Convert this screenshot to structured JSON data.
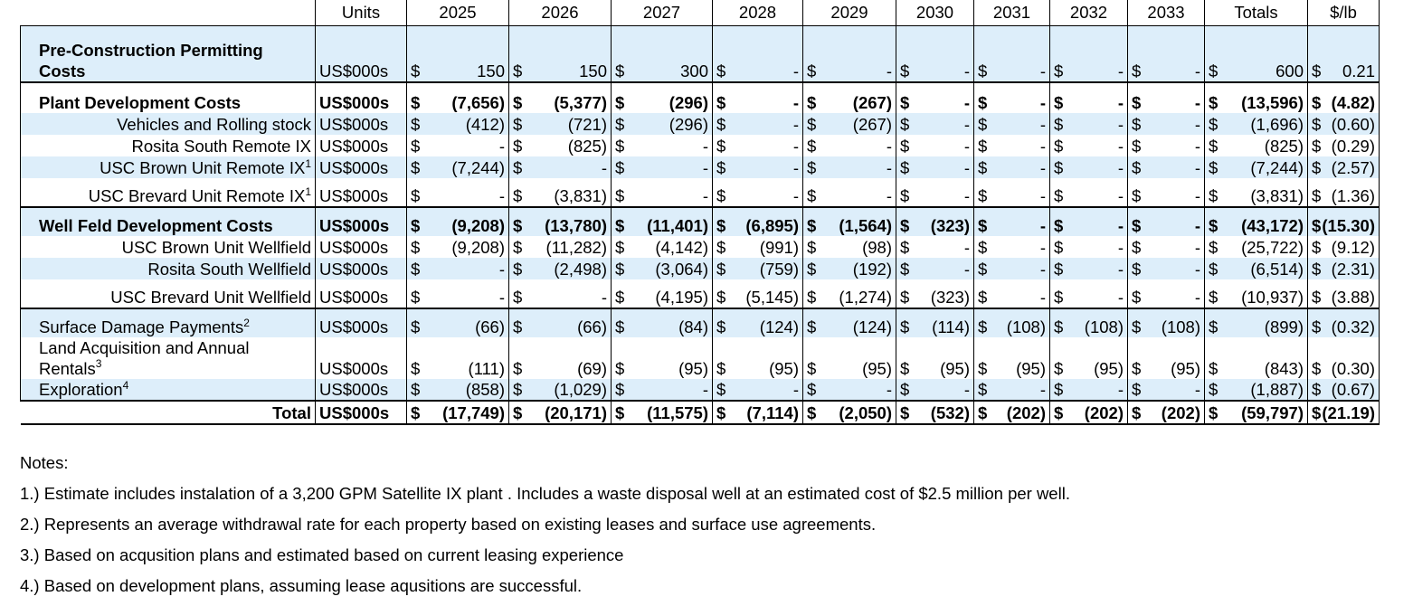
{
  "table": {
    "headers": [
      "Units",
      "2025",
      "2026",
      "2027",
      "2028",
      "2029",
      "2030",
      "2031",
      "2032",
      "2033",
      "Totals",
      "$/lb"
    ],
    "rows": [
      {
        "label": "Pre-Construction Permitting Costs",
        "units": "US$000s",
        "values": [
          "150",
          "150",
          "300",
          "-",
          "-",
          "-",
          "-",
          "-",
          "-",
          "600",
          "0.21"
        ],
        "style": "blue-wrap"
      },
      {
        "label": "Plant Development Costs",
        "units": "US$000s",
        "values": [
          "(7,656)",
          "(5,377)",
          "(296)",
          "-",
          "(267)",
          "-",
          "-",
          "-",
          "-",
          "(13,596)",
          "(4.82)"
        ],
        "style": "bold"
      },
      {
        "label": "Vehicles and Rolling stock",
        "units": "US$000s",
        "values": [
          "(412)",
          "(721)",
          "(296)",
          "-",
          "(267)",
          "-",
          "-",
          "-",
          "-",
          "(1,696)",
          "(0.60)"
        ],
        "style": "blue-indent"
      },
      {
        "label": "Rosita South Remote IX",
        "units": "US$000s",
        "values": [
          "-",
          "(825)",
          "-",
          "-",
          "-",
          "-",
          "-",
          "-",
          "-",
          "(825)",
          "(0.29)"
        ],
        "style": "indent"
      },
      {
        "label": "USC Brown Unit Remote IX",
        "sup": "1",
        "units": "US$000s",
        "values": [
          "(7,244)",
          "-",
          "-",
          "-",
          "-",
          "-",
          "-",
          "-",
          "-",
          "(7,244)",
          "(2.57)"
        ],
        "style": "blue-indent"
      },
      {
        "label": "USC Brevard Unit Remote IX",
        "sup": "1",
        "units": "US$000s",
        "values": [
          "-",
          "(3,831)",
          "-",
          "-",
          "-",
          "-",
          "-",
          "-",
          "-",
          "(3,831)",
          "(1.36)"
        ],
        "style": "indent-tall"
      },
      {
        "label": "Well Feld Development Costs",
        "units": "US$000s",
        "values": [
          "(9,208)",
          "(13,780)",
          "(11,401)",
          "(6,895)",
          "(1,564)",
          "(323)",
          "-",
          "-",
          "-",
          "(43,172)",
          "(15.30)"
        ],
        "style": "blue-section"
      },
      {
        "label": "USC Brown Unit Wellfield",
        "units": "US$000s",
        "values": [
          "(9,208)",
          "(11,282)",
          "(4,142)",
          "(991)",
          "(98)",
          "-",
          "-",
          "-",
          "-",
          "(25,722)",
          "(9.12)"
        ],
        "style": "indent"
      },
      {
        "label": "Rosita South Wellfield",
        "units": "US$000s",
        "values": [
          "-",
          "(2,498)",
          "(3,064)",
          "(759)",
          "(192)",
          "-",
          "-",
          "-",
          "-",
          "(6,514)",
          "(2.31)"
        ],
        "style": "blue-indent"
      },
      {
        "label": "USC Brevard Unit Wellfield",
        "units": "US$000s",
        "values": [
          "-",
          "-",
          "(4,195)",
          "(5,145)",
          "(1,274)",
          "(323)",
          "-",
          "-",
          "-",
          "(10,937)",
          "(3.88)"
        ],
        "style": "indent-tall"
      },
      {
        "label": "Surface Damage Payments",
        "sup": "2",
        "units": "US$000s",
        "values": [
          "(66)",
          "(66)",
          "(84)",
          "(124)",
          "(124)",
          "(114)",
          "(108)",
          "(108)",
          "(108)",
          "(899)",
          "(0.32)"
        ],
        "style": "blue-section-left"
      },
      {
        "label": "Land Acquisition and Annual Rentals",
        "sup": "3",
        "units": "US$000s",
        "values": [
          "(111)",
          "(69)",
          "(95)",
          "(95)",
          "(95)",
          "(95)",
          "(95)",
          "(95)",
          "(95)",
          "(843)",
          "(0.30)"
        ],
        "style": "wrap"
      },
      {
        "label": "Exploration",
        "sup": "4",
        "units": "US$000s",
        "values": [
          "(858)",
          "(1,029)",
          "-",
          "-",
          "-",
          "-",
          "-",
          "-",
          "-",
          "(1,887)",
          "(0.67)"
        ],
        "style": "blue-left"
      },
      {
        "label": "Total",
        "units": "US$000s",
        "values": [
          "(17,749)",
          "(20,171)",
          "(11,575)",
          "(7,114)",
          "(2,050)",
          "(532)",
          "(202)",
          "(202)",
          "(202)",
          "(59,797)",
          "(21.19)"
        ],
        "style": "total"
      }
    ],
    "currency_symbol": "$"
  },
  "notes": {
    "title": "Notes:",
    "items": [
      "1.) Estimate includes instalation of a 3,200 GPM Satellite IX plant . Includes a waste disposal well at an estimated cost of $2.5 million per well.",
      "2.) Represents an average withdrawal rate for each property based on existing leases and surface use agreements.",
      "3.) Based on acqusition plans and estimated based on current leasing experience",
      "4.) Based on development plans, assuming lease aqusitions are successful."
    ]
  },
  "colors": {
    "row_highlight": "#ddeefa",
    "border": "#000000"
  }
}
